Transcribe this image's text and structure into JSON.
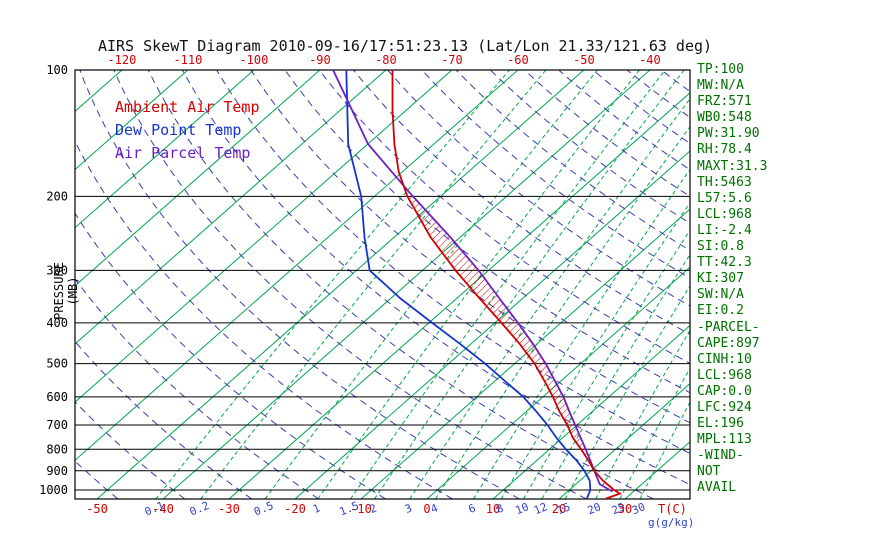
{
  "title": "AIRS SkewT Diagram 2010-09-16/17:51:23.13 (Lat/Lon 21.33/121.63 deg)",
  "legend": {
    "items": [
      {
        "label": "Ambient Air Temp",
        "color": "#d40000"
      },
      {
        "label": "Dew Point Temp",
        "color": "#1535cc"
      },
      {
        "label": "Air Parcel Temp",
        "color": "#6a1fc8"
      }
    ]
  },
  "side_panel": {
    "lines": [
      "TP:100",
      "MW:N/A",
      "FRZ:571",
      "WB0:548",
      "PW:31.90",
      "RH:78.4",
      "MAXT:31.3",
      "TH:5463",
      "L57:5.6",
      "LCL:968",
      "LI:-2.4",
      "SI:0.8",
      "TT:42.3",
      "KI:307",
      "SW:N/A",
      "EI:0.2",
      "-PARCEL-",
      "CAPE:897",
      "CINH:10",
      "LCL:968",
      "CAP:0.0",
      "LFC:924",
      "EL:196",
      "MPL:113",
      "-WIND-",
      "NOT",
      "AVAIL"
    ]
  },
  "chart_data": {
    "type": "skewt",
    "title": "AIRS SkewT Diagram 2010-09-16/17:51:23.13 (Lat/Lon 21.33/121.63 deg)",
    "y_scale": "log",
    "pressure_range": [
      100,
      1050
    ],
    "pressure_axis": {
      "label": "PRESSURE (MB)",
      "ticks": [
        100,
        200,
        300,
        400,
        500,
        600,
        700,
        800,
        900,
        1000
      ]
    },
    "temp_axis": {
      "label": "T(C)",
      "unit": "C",
      "top_ticks": [
        -120,
        -110,
        -100,
        -90,
        -80,
        -70,
        -60,
        -50,
        -40
      ],
      "bottom_ticks": [
        -50,
        -40,
        -30,
        -20,
        -10,
        0,
        10,
        20,
        30
      ]
    },
    "mixing_ratio": {
      "label": "g(g/kg)",
      "values": [
        0.1,
        0.2,
        0.5,
        1,
        1.5,
        2,
        3,
        4,
        6,
        8,
        10,
        12,
        15,
        20,
        25,
        30
      ]
    },
    "isotherms": {
      "start": -130,
      "end": 40,
      "step": 10
    },
    "dry_adiabats": {
      "start": -50,
      "end": 190,
      "step": 10
    },
    "colors": {
      "isotherm": "#00a651",
      "mixing_line": "#00a651",
      "adiabat": "#3c3cae",
      "pressure_line": "#000000",
      "border": "#000000",
      "top_tick": "#d40000",
      "bottom_tick": "#d40000",
      "mixing_label": "#3344cc",
      "pressure_label": "#000000",
      "title": "#111111",
      "stats": "#007000"
    },
    "series": [
      {
        "id": "ambient",
        "name": "Ambient Air Temp",
        "color": "#d40000",
        "points": [
          [
            1050,
            27.0
          ],
          [
            1020,
            28.3
          ],
          [
            1000,
            26.8
          ],
          [
            950,
            23.5
          ],
          [
            900,
            20.5
          ],
          [
            850,
            17.8
          ],
          [
            800,
            14.8
          ],
          [
            750,
            11.5
          ],
          [
            700,
            8.5
          ],
          [
            650,
            5.0
          ],
          [
            600,
            1.5
          ],
          [
            550,
            -2.5
          ],
          [
            500,
            -7.0
          ],
          [
            450,
            -12.5
          ],
          [
            400,
            -19.0
          ],
          [
            350,
            -26.5
          ],
          [
            300,
            -35.0
          ],
          [
            250,
            -44.5
          ],
          [
            200,
            -55.0
          ],
          [
            175,
            -60.5
          ],
          [
            150,
            -66.0
          ],
          [
            125,
            -72.0
          ],
          [
            100,
            -79.0
          ]
        ]
      },
      {
        "id": "dewpoint",
        "name": "Dew Point Temp",
        "color": "#1535cc",
        "points": [
          [
            1050,
            24.2
          ],
          [
            1000,
            23.2
          ],
          [
            950,
            21.5
          ],
          [
            900,
            19.0
          ],
          [
            850,
            16.0
          ],
          [
            800,
            12.5
          ],
          [
            750,
            9.0
          ],
          [
            700,
            5.5
          ],
          [
            650,
            1.5
          ],
          [
            600,
            -3.0
          ],
          [
            550,
            -8.5
          ],
          [
            500,
            -14.5
          ],
          [
            450,
            -21.5
          ],
          [
            400,
            -29.5
          ],
          [
            350,
            -38.5
          ],
          [
            300,
            -48.0
          ],
          [
            250,
            -54.5
          ],
          [
            200,
            -62.0
          ],
          [
            150,
            -73.0
          ],
          [
            100,
            -86.0
          ]
        ]
      },
      {
        "id": "parcel",
        "name": "Air Parcel Temp",
        "color": "#6a1fc8",
        "points": [
          [
            1008,
            26.8
          ],
          [
            968,
            23.6
          ],
          [
            950,
            22.8
          ],
          [
            900,
            20.5
          ],
          [
            850,
            18.1
          ],
          [
            800,
            15.5
          ],
          [
            750,
            12.7
          ],
          [
            700,
            9.7
          ],
          [
            650,
            6.5
          ],
          [
            600,
            3.1
          ],
          [
            550,
            -0.9
          ],
          [
            500,
            -5.3
          ],
          [
            450,
            -10.5
          ],
          [
            400,
            -16.5
          ],
          [
            350,
            -23.5
          ],
          [
            300,
            -31.5
          ],
          [
            250,
            -41.5
          ],
          [
            196,
            -55.3
          ],
          [
            150,
            -70.0
          ],
          [
            100,
            -88.0
          ]
        ]
      }
    ],
    "cape_hatch": {
      "parcel": "parcel",
      "ambient": "ambient",
      "from_pressure": 900,
      "to_pressure": 197,
      "color": "#d40000"
    },
    "annotations": {
      "legend_position": "top-left-inside",
      "grid": "skewt-background"
    }
  }
}
